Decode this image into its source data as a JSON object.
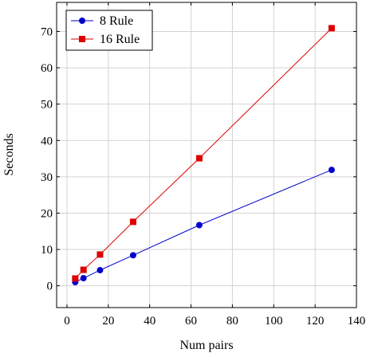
{
  "chart_data": {
    "type": "line",
    "xlabel": "Num pairs",
    "ylabel": "Seconds",
    "xlim": [
      -5,
      140
    ],
    "ylim": [
      -6,
      78
    ],
    "x_ticks": [
      "0",
      "20",
      "40",
      "60",
      "80",
      "100",
      "120",
      "140"
    ],
    "y_ticks": [
      "0",
      "10",
      "20",
      "30",
      "40",
      "50",
      "60",
      "70"
    ],
    "x_tick_values": [
      0,
      20,
      40,
      60,
      80,
      100,
      120,
      140
    ],
    "y_tick_values": [
      0,
      10,
      20,
      30,
      40,
      50,
      60,
      70
    ],
    "grid": true,
    "legend_position": "top-left",
    "series": [
      {
        "name": "8 Rule",
        "color": "#0000cc",
        "marker": "circle",
        "points": [
          {
            "x": 4,
            "y": 1.0
          },
          {
            "x": 8,
            "y": 2.1
          },
          {
            "x": 16,
            "y": 4.3
          },
          {
            "x": 32,
            "y": 8.4
          },
          {
            "x": 64,
            "y": 16.7
          },
          {
            "x": 128,
            "y": 31.9
          }
        ]
      },
      {
        "name": "16 Rule",
        "color": "#dd0000",
        "marker": "square",
        "points": [
          {
            "x": 4,
            "y": 2.0
          },
          {
            "x": 8,
            "y": 4.4
          },
          {
            "x": 16,
            "y": 8.6
          },
          {
            "x": 32,
            "y": 17.6
          },
          {
            "x": 64,
            "y": 35.1
          },
          {
            "x": 128,
            "y": 70.9
          }
        ]
      }
    ]
  }
}
